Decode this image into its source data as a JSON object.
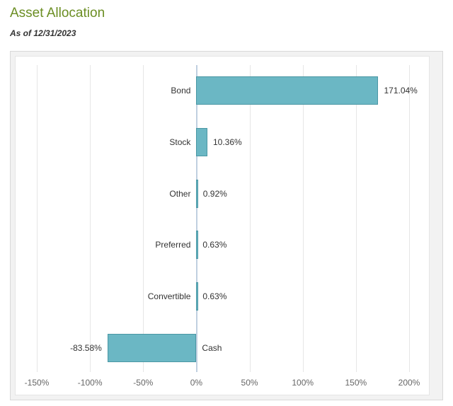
{
  "title": "Asset Allocation",
  "title_color": "#6b8e23",
  "asof_prefix": "As of ",
  "asof_date": "12/31/2023",
  "chart": {
    "type": "bar-horizontal",
    "xmin": -150,
    "xmax": 200,
    "xtick_step": 50,
    "bar_fill": "#6bb7c4",
    "bar_stroke": "#4a97a4",
    "grid_color": "#e6e6e6",
    "zero_line_color": "#c0d0e0",
    "background": "#ffffff",
    "label_fontsize": 12,
    "tick_fontsize": 12,
    "tick_color": "#666666",
    "label_color": "#333333",
    "tick_suffix": "%",
    "rows": [
      {
        "category": "Bond",
        "value": 171.04,
        "display": "171.04%"
      },
      {
        "category": "Stock",
        "value": 10.36,
        "display": "10.36%"
      },
      {
        "category": "Other",
        "value": 0.92,
        "display": "0.92%"
      },
      {
        "category": "Preferred",
        "value": 0.63,
        "display": "0.63%"
      },
      {
        "category": "Convertible",
        "value": 0.63,
        "display": "0.63%"
      },
      {
        "category": "Cash",
        "value": -83.58,
        "display": "-83.58%"
      }
    ],
    "xticks": [
      {
        "v": -150,
        "label": "-150%"
      },
      {
        "v": -100,
        "label": "-100%"
      },
      {
        "v": -50,
        "label": "-50%"
      },
      {
        "v": 0,
        "label": "0%"
      },
      {
        "v": 50,
        "label": "50%"
      },
      {
        "v": 100,
        "label": "100%"
      },
      {
        "v": 150,
        "label": "150%"
      },
      {
        "v": 200,
        "label": "200%"
      }
    ]
  }
}
